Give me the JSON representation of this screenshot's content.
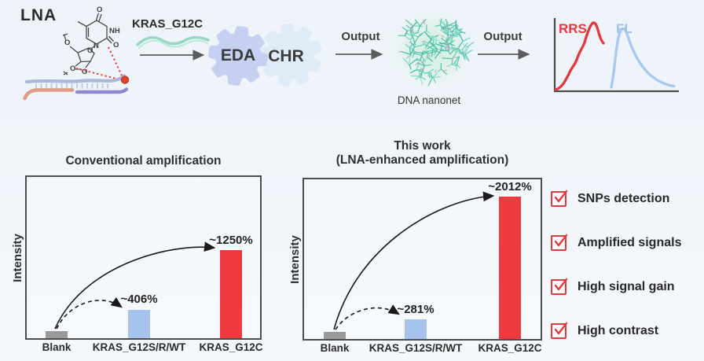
{
  "scheme": {
    "lna_label": "LNA",
    "target_label": "KRAS_G12C",
    "eda_label": "EDA",
    "chr_label": "CHR",
    "output1_label": "Output",
    "output2_label": "Output",
    "nanonet_label": "DNA nanonet",
    "rrs_label": "RRS",
    "fl_label": "FL",
    "colors": {
      "rrs_curve": "#e5383d",
      "fl_curve": "#a8c8f2",
      "eda_gear": "#c6d1f1",
      "chr_gear": "#e0ebf8",
      "target_strand": "#96d8c6",
      "nanonet_mesh": "#4cc3ad",
      "check_red": "#e4393e"
    }
  },
  "chart_data": [
    {
      "type": "bar",
      "title": "Conventional amplification",
      "ylabel": "Intensity",
      "categories": [
        "Blank",
        "KRAS_G12S/R/WT",
        "KRAS_G12C"
      ],
      "values": [
        100,
        406,
        1250
      ],
      "value_unit": "percent relative to blank",
      "bar_colors": [
        "#9a9a9a",
        "#a6c3ee",
        "#ee3b40"
      ],
      "annotations": [
        "",
        "~406%",
        "~1250%"
      ],
      "ylim": [
        0,
        2300
      ],
      "grid": false,
      "legend": false
    },
    {
      "type": "bar",
      "title": "This work",
      "subtitle": "(LNA-enhanced amplification)",
      "ylabel": "Intensity",
      "categories": [
        "Blank",
        "KRAS_G12S/R/WT",
        "KRAS_G12C"
      ],
      "values": [
        100,
        281,
        2012
      ],
      "value_unit": "percent relative to blank",
      "bar_colors": [
        "#9a9a9a",
        "#a6c3ee",
        "#ee3b40"
      ],
      "annotations": [
        "",
        "~281%",
        "~2012%"
      ],
      "ylim": [
        0,
        2300
      ],
      "grid": false,
      "legend": false
    }
  ],
  "checklist": {
    "items": [
      "SNPs detection",
      "Amplified signals",
      "High signal gain",
      "High contrast"
    ]
  }
}
